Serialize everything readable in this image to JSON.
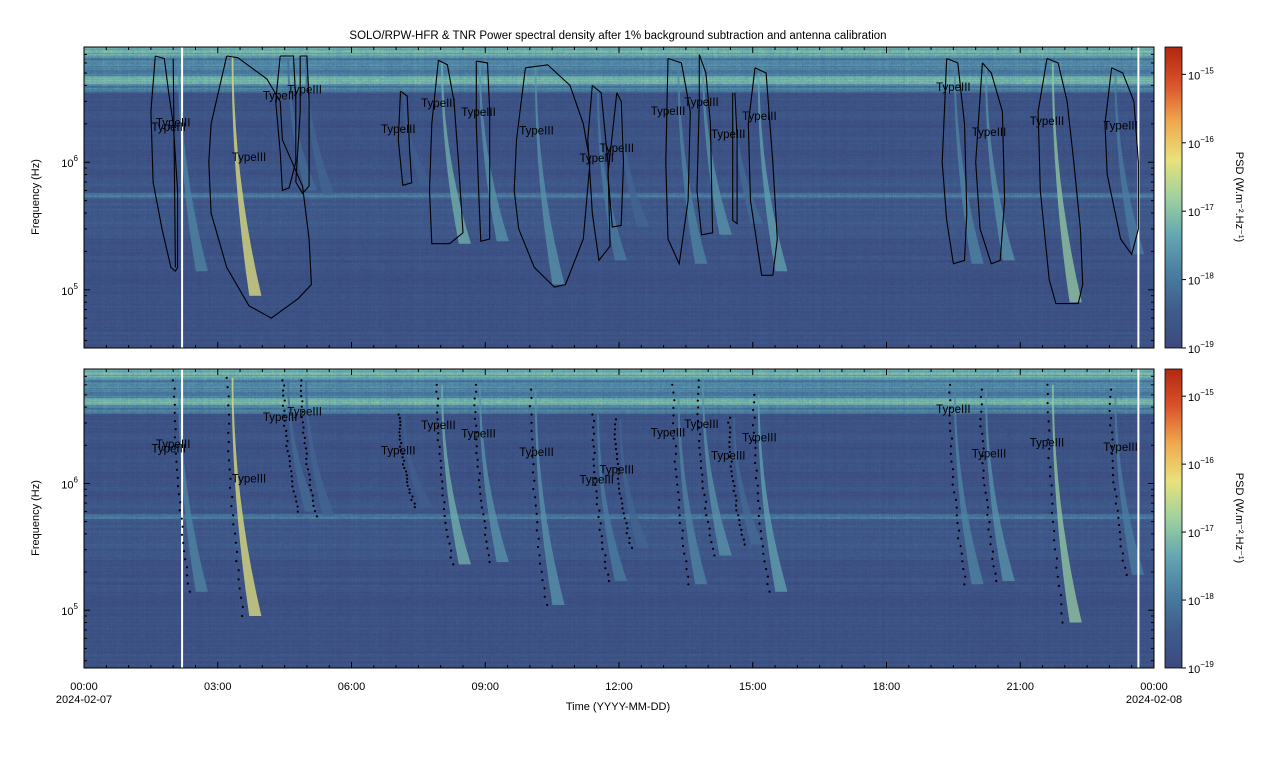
{
  "chart_data": {
    "type": "heatmap",
    "title": "SOLO/RPW-HFR & TNR  Power spectral density after 1% background subtraction and antenna calibration",
    "xlabel": "Time (YYYY-MM-DD)",
    "ylabel": "Frequency (Hz)",
    "colorbar_label": "PSD (W.m⁻².Hz⁻¹)",
    "xlim_hours": [
      0,
      24
    ],
    "x_ticks": [
      {
        "h": 0,
        "label": "00:00",
        "date": "2024-02-07"
      },
      {
        "h": 3,
        "label": "03:00"
      },
      {
        "h": 6,
        "label": "06:00"
      },
      {
        "h": 9,
        "label": "09:00"
      },
      {
        "h": 12,
        "label": "12:00"
      },
      {
        "h": 15,
        "label": "15:00"
      },
      {
        "h": 18,
        "label": "18:00"
      },
      {
        "h": 21,
        "label": "21:00"
      },
      {
        "h": 24,
        "label": "00:00",
        "date": "2024-02-08"
      }
    ],
    "ylim_hz": [
      35000,
      8000000
    ],
    "y_scale": "log",
    "y_ticks": [
      {
        "value": 100000,
        "base": "10",
        "exp": "5"
      },
      {
        "value": 1000000,
        "base": "10",
        "exp": "6"
      }
    ],
    "colorbar_log_range": [
      -19,
      -14.6
    ],
    "colorbar_ticks": [
      {
        "value": -19,
        "base": "10",
        "exp": "−19"
      },
      {
        "value": -18,
        "base": "10",
        "exp": "−18"
      },
      {
        "value": -17,
        "base": "10",
        "exp": "−17"
      },
      {
        "value": -16,
        "base": "10",
        "exp": "−16"
      },
      {
        "value": -15,
        "base": "10",
        "exp": "−15"
      }
    ],
    "colormap": [
      "#3b4a80",
      "#3f5c8c",
      "#4a7ea0",
      "#64a7b0",
      "#9fd19e",
      "#e8e27a",
      "#f0a94e",
      "#d9532b",
      "#b1280f"
    ],
    "data_gaps_hours": [
      2.2,
      23.65
    ],
    "bursts": [
      {
        "t": 2.1,
        "f_hi": 6500000,
        "f_lo": 140000,
        "peak": -17.8
      },
      {
        "t": 3.3,
        "f_hi": 6800000,
        "f_lo": 90000,
        "peak": -16.3
      },
      {
        "t": 4.55,
        "f_hi": 6500000,
        "f_lo": 600000,
        "peak": -18.2
      },
      {
        "t": 4.95,
        "f_hi": 6500000,
        "f_lo": 550000,
        "peak": -18.3
      },
      {
        "t": 7.15,
        "f_hi": 3500000,
        "f_lo": 650000,
        "peak": -18.4
      },
      {
        "t": 8.0,
        "f_hi": 6000000,
        "f_lo": 230000,
        "peak": -17.2
      },
      {
        "t": 8.85,
        "f_hi": 6000000,
        "f_lo": 240000,
        "peak": -17.6
      },
      {
        "t": 10.1,
        "f_hi": 5500000,
        "f_lo": 110000,
        "peak": -17.6
      },
      {
        "t": 11.5,
        "f_hi": 3500000,
        "f_lo": 170000,
        "peak": -17.9
      },
      {
        "t": 12.0,
        "f_hi": 3200000,
        "f_lo": 310000,
        "peak": -18.3
      },
      {
        "t": 13.3,
        "f_hi": 6000000,
        "f_lo": 160000,
        "peak": -17.8
      },
      {
        "t": 13.85,
        "f_hi": 6500000,
        "f_lo": 270000,
        "peak": -17.6
      },
      {
        "t": 14.55,
        "f_hi": 3300000,
        "f_lo": 330000,
        "peak": -18.2
      },
      {
        "t": 15.1,
        "f_hi": 5000000,
        "f_lo": 140000,
        "peak": -17.4
      },
      {
        "t": 19.5,
        "f_hi": 6000000,
        "f_lo": 160000,
        "peak": -17.8
      },
      {
        "t": 20.2,
        "f_hi": 5500000,
        "f_lo": 170000,
        "peak": -17.6
      },
      {
        "t": 21.7,
        "f_hi": 6000000,
        "f_lo": 80000,
        "peak": -16.9
      },
      {
        "t": 23.1,
        "f_hi": 5500000,
        "f_lo": 190000,
        "peak": -17.9
      }
    ],
    "annotations": [
      {
        "text": "TypeIII",
        "t": 1.9,
        "f": 1750000
      },
      {
        "text": "TypeIII",
        "t": 2.0,
        "f": 1900000
      },
      {
        "text": "TypeIII",
        "t": 3.7,
        "f": 1020000
      },
      {
        "text": "TypeIII",
        "t": 4.4,
        "f": 3100000
      },
      {
        "text": "TypeIII",
        "t": 4.95,
        "f": 3450000
      },
      {
        "text": "TypeIII",
        "t": 7.05,
        "f": 1700000
      },
      {
        "text": "TypeIII",
        "t": 7.95,
        "f": 2700000
      },
      {
        "text": "TypeIII",
        "t": 8.85,
        "f": 2300000
      },
      {
        "text": "TypeIII",
        "t": 10.15,
        "f": 1650000
      },
      {
        "text": "TypeIII",
        "t": 11.5,
        "f": 1000000
      },
      {
        "text": "TypeIII",
        "t": 11.95,
        "f": 1200000
      },
      {
        "text": "TypeIII",
        "t": 13.1,
        "f": 2350000
      },
      {
        "text": "TypeIII",
        "t": 13.85,
        "f": 2750000
      },
      {
        "text": "TypeIII",
        "t": 14.45,
        "f": 1550000
      },
      {
        "text": "TypeIII",
        "t": 15.15,
        "f": 2150000
      },
      {
        "text": "TypeIII",
        "t": 19.5,
        "f": 3600000
      },
      {
        "text": "TypeIII",
        "t": 20.3,
        "f": 1600000
      },
      {
        "text": "TypeIII",
        "t": 21.6,
        "f": 1950000
      },
      {
        "text": "TypeIII",
        "t": 23.25,
        "f": 1800000
      }
    ],
    "contours": [
      [
        [
          1.6,
          6800000.0
        ],
        [
          1.8,
          6500000.0
        ],
        [
          1.9,
          3500000.0
        ],
        [
          2.0,
          2000000.0
        ],
        [
          2.1,
          600000.0
        ],
        [
          2.1,
          150000.0
        ],
        [
          2.05,
          140000.0
        ],
        [
          1.95,
          150000.0
        ],
        [
          1.75,
          300000.0
        ],
        [
          1.55,
          700000.0
        ],
        [
          1.5,
          2500000.0
        ],
        [
          1.6,
          6800000.0
        ]
      ],
      [
        [
          2.0,
          6500000.0
        ],
        [
          2.05,
          150000.0
        ],
        [
          2.0,
          6500000.0
        ]
      ],
      [
        [
          3.2,
          6800000.0
        ],
        [
          3.45,
          6600000.0
        ],
        [
          4.1,
          4500000.0
        ],
        [
          4.4,
          3000000.0
        ],
        [
          4.45,
          1500000.0
        ],
        [
          4.9,
          650000.0
        ],
        [
          5.05,
          250000.0
        ],
        [
          5.1,
          110000.0
        ],
        [
          4.8,
          85000.0
        ],
        [
          4.2,
          60000.0
        ],
        [
          3.7,
          75000.0
        ],
        [
          3.2,
          150000.0
        ],
        [
          2.85,
          400000.0
        ],
        [
          2.8,
          1000000.0
        ],
        [
          2.85,
          2000000.0
        ],
        [
          3.2,
          6800000.0
        ]
      ],
      [
        [
          4.4,
          6800000.0
        ],
        [
          4.7,
          6800000.0
        ],
        [
          4.75,
          3000000.0
        ],
        [
          4.75,
          1000000.0
        ],
        [
          4.6,
          630000.0
        ],
        [
          4.45,
          600000.0
        ],
        [
          4.4,
          1200000.0
        ],
        [
          4.3,
          3000000.0
        ],
        [
          4.4,
          6800000.0
        ]
      ],
      [
        [
          4.85,
          6800000.0
        ],
        [
          5.0,
          6800000.0
        ],
        [
          5.05,
          3000000.0
        ],
        [
          5.05,
          650000.0
        ],
        [
          4.9,
          570000.0
        ],
        [
          4.75,
          700000.0
        ],
        [
          4.85,
          2500000.0
        ],
        [
          4.85,
          6800000.0
        ]
      ],
      [
        [
          7.1,
          3600000.0
        ],
        [
          7.25,
          3300000.0
        ],
        [
          7.3,
          1300000.0
        ],
        [
          7.35,
          690000.0
        ],
        [
          7.15,
          660000.0
        ],
        [
          7.05,
          1500000.0
        ],
        [
          7.1,
          3600000.0
        ]
      ],
      [
        [
          7.95,
          6300000.0
        ],
        [
          8.15,
          5800000.0
        ],
        [
          8.3,
          3000000.0
        ],
        [
          8.4,
          1000000.0
        ],
        [
          8.5,
          280000.0
        ],
        [
          8.2,
          230000.0
        ],
        [
          7.8,
          230000.0
        ],
        [
          7.75,
          600000.0
        ],
        [
          7.8,
          2000000.0
        ],
        [
          7.95,
          6300000.0
        ]
      ],
      [
        [
          8.8,
          6200000.0
        ],
        [
          9.05,
          6000000.0
        ],
        [
          9.1,
          2500000.0
        ],
        [
          9.1,
          250000.0
        ],
        [
          8.9,
          240000.0
        ],
        [
          8.85,
          600000.0
        ],
        [
          8.8,
          2000000.0
        ],
        [
          8.8,
          6200000.0
        ]
      ],
      [
        [
          9.9,
          5500000.0
        ],
        [
          10.4,
          5800000.0
        ],
        [
          10.9,
          4000000.0
        ],
        [
          11.2,
          2000000.0
        ],
        [
          11.35,
          1000000.0
        ],
        [
          11.2,
          250000.0
        ],
        [
          10.8,
          110000.0
        ],
        [
          10.55,
          105000.0
        ],
        [
          10.1,
          150000.0
        ],
        [
          9.75,
          300000.0
        ],
        [
          9.65,
          600000.0
        ],
        [
          9.7,
          1500000.0
        ],
        [
          9.9,
          5500000.0
        ]
      ],
      [
        [
          11.4,
          4000000.0
        ],
        [
          11.6,
          3500000.0
        ],
        [
          11.75,
          1000000.0
        ],
        [
          11.8,
          220000.0
        ],
        [
          11.55,
          170000.0
        ],
        [
          11.4,
          400000.0
        ],
        [
          11.3,
          1500000.0
        ],
        [
          11.4,
          4000000.0
        ]
      ],
      [
        [
          11.95,
          3500000.0
        ],
        [
          12.05,
          3000000.0
        ],
        [
          12.1,
          1000000.0
        ],
        [
          12.05,
          320000.0
        ],
        [
          11.85,
          310000.0
        ],
        [
          11.75,
          800000.0
        ],
        [
          11.95,
          3500000.0
        ]
      ],
      [
        [
          13.1,
          6500000.0
        ],
        [
          13.4,
          6000000.0
        ],
        [
          13.6,
          2500000.0
        ],
        [
          13.55,
          500000.0
        ],
        [
          13.35,
          160000.0
        ],
        [
          13.1,
          250000.0
        ],
        [
          13.05,
          1000000.0
        ],
        [
          13.1,
          6500000.0
        ]
      ],
      [
        [
          13.8,
          7000000.0
        ],
        [
          13.95,
          5000000.0
        ],
        [
          14.05,
          2000000.0
        ],
        [
          14.1,
          280000.0
        ],
        [
          13.85,
          270000.0
        ],
        [
          13.75,
          600000.0
        ],
        [
          13.8,
          3000000.0
        ],
        [
          13.8,
          7000000.0
        ]
      ],
      [
        [
          14.6,
          3500000.0
        ],
        [
          14.65,
          1500000.0
        ],
        [
          14.65,
          330000.0
        ],
        [
          14.55,
          350000.0
        ],
        [
          14.55,
          3500000.0
        ]
      ],
      [
        [
          15.05,
          5500000.0
        ],
        [
          15.3,
          5000000.0
        ],
        [
          15.45,
          1000000.0
        ],
        [
          15.55,
          250000.0
        ],
        [
          15.45,
          130000.0
        ],
        [
          15.2,
          130000.0
        ],
        [
          14.95,
          500000.0
        ],
        [
          14.9,
          2000000.0
        ],
        [
          15.05,
          5500000.0
        ]
      ],
      [
        [
          19.35,
          6500000.0
        ],
        [
          19.6,
          6000000.0
        ],
        [
          19.75,
          2000000.0
        ],
        [
          19.8,
          400000.0
        ],
        [
          19.75,
          170000.0
        ],
        [
          19.5,
          160000.0
        ],
        [
          19.35,
          350000.0
        ],
        [
          19.25,
          1000000.0
        ],
        [
          19.35,
          6500000.0
        ]
      ],
      [
        [
          20.15,
          6000000.0
        ],
        [
          20.35,
          5000000.0
        ],
        [
          20.6,
          2500000.0
        ],
        [
          20.65,
          500000.0
        ],
        [
          20.55,
          170000.0
        ],
        [
          20.35,
          160000.0
        ],
        [
          20.1,
          300000.0
        ],
        [
          20.0,
          1000000.0
        ],
        [
          20.15,
          6000000.0
        ]
      ],
      [
        [
          21.6,
          6500000.0
        ],
        [
          21.85,
          6000000.0
        ],
        [
          22.05,
          3000000.0
        ],
        [
          22.2,
          1000000.0
        ],
        [
          22.35,
          300000.0
        ],
        [
          22.4,
          110000.0
        ],
        [
          22.3,
          78000.0
        ],
        [
          21.8,
          78000.0
        ],
        [
          21.65,
          120000.0
        ],
        [
          21.45,
          600000.0
        ],
        [
          21.4,
          2500000.0
        ],
        [
          21.6,
          6500000.0
        ]
      ],
      [
        [
          23.05,
          5500000.0
        ],
        [
          23.3,
          5000000.0
        ],
        [
          23.55,
          3000000.0
        ],
        [
          23.65,
          1000000.0
        ],
        [
          23.65,
          300000.0
        ],
        [
          23.5,
          190000.0
        ],
        [
          23.25,
          250000.0
        ],
        [
          22.95,
          800000.0
        ],
        [
          22.9,
          2000000.0
        ],
        [
          23.05,
          5500000.0
        ]
      ]
    ]
  }
}
